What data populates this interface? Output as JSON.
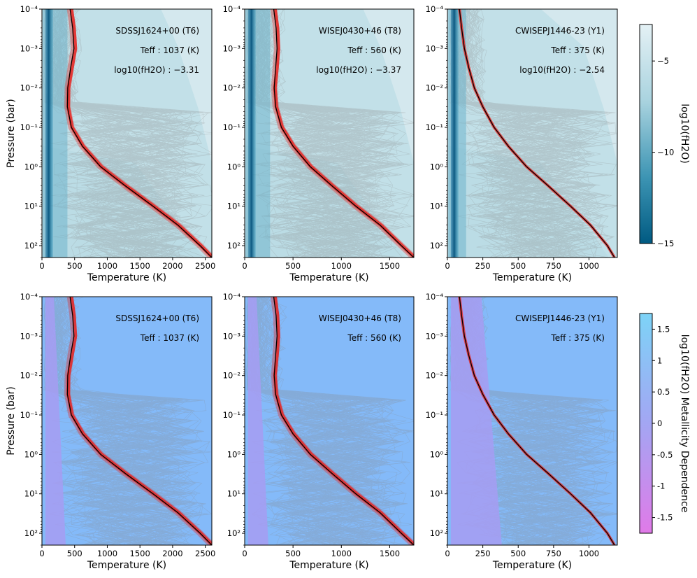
{
  "chart_data": [
    {
      "type": "line",
      "row": "top",
      "object": "SDSSJ1624+00 (T6)",
      "teff": "Teff : 1037 (K)",
      "abundance_label": "log10(fH2O) : −3.31",
      "xlabel": "Temperature (K)",
      "ylabel": "Pressure (bar)",
      "xlim": [
        0,
        2600
      ],
      "xticks": [
        "0",
        "500",
        "1000",
        "1500",
        "2000",
        "2500"
      ],
      "xtick_values": [
        0,
        500,
        1000,
        1500,
        2000,
        2500
      ],
      "ylim": [
        0.0001,
        200
      ],
      "yscale": "log",
      "yticks": [
        "10⁻⁴",
        "10⁻³",
        "10⁻²",
        "10⁻¹",
        "10⁰",
        "10¹",
        "10²"
      ],
      "ytick_values": [
        0.0001,
        0.001,
        0.01,
        0.1,
        1,
        10,
        100
      ],
      "profile_pressure": [
        0.0001,
        0.0003,
        0.001,
        0.003,
        0.01,
        0.03,
        0.1,
        0.3,
        1,
        3,
        10,
        30,
        100,
        200
      ],
      "profile_temperature": [
        430,
        470,
        490,
        440,
        395,
        390,
        450,
        620,
        900,
        1270,
        1700,
        2080,
        2420,
        2600
      ]
    },
    {
      "type": "line",
      "row": "top",
      "object": "WISEJ0430+46 (T8)",
      "teff": "Teff : 560 (K)",
      "abundance_label": "log10(fH2O) : −3.37",
      "xlabel": "Temperature (K)",
      "xlim": [
        0,
        1750
      ],
      "xticks": [
        "0",
        "500",
        "1000",
        "1500"
      ],
      "xtick_values": [
        0,
        500,
        1000,
        1500
      ],
      "ylim": [
        0.0001,
        200
      ],
      "yscale": "log",
      "yticks": [
        "10⁻⁴",
        "10⁻³",
        "10⁻²",
        "10⁻¹",
        "10⁰",
        "10¹",
        "10²"
      ],
      "ytick_values": [
        0.0001,
        0.001,
        0.01,
        0.1,
        1,
        10,
        100
      ],
      "profile_pressure": [
        0.0001,
        0.0003,
        0.001,
        0.003,
        0.01,
        0.03,
        0.1,
        0.3,
        1,
        3,
        10,
        30,
        100,
        200
      ],
      "profile_temperature": [
        300,
        325,
        335,
        320,
        305,
        320,
        380,
        500,
        680,
        900,
        1150,
        1400,
        1620,
        1750
      ]
    },
    {
      "type": "line",
      "row": "top",
      "object": "CWISEPJ1446-23 (Y1)",
      "teff": "Teff : 375 (K)",
      "abundance_label": "log10(fH2O) : −2.54",
      "xlabel": "Temperature (K)",
      "xlim": [
        0,
        1200
      ],
      "xticks": [
        "0",
        "250",
        "500",
        "750",
        "1000"
      ],
      "xtick_values": [
        0,
        250,
        500,
        750,
        1000
      ],
      "ylim": [
        0.0001,
        200
      ],
      "yscale": "log",
      "yticks": [
        "10⁻⁴",
        "10⁻³",
        "10⁻²",
        "10⁻¹",
        "10⁰",
        "10¹",
        "10²"
      ],
      "ytick_values": [
        0.0001,
        0.001,
        0.01,
        0.1,
        1,
        10,
        100
      ],
      "profile_pressure": [
        0.0001,
        0.0003,
        0.001,
        0.003,
        0.01,
        0.03,
        0.1,
        0.3,
        1,
        3,
        10,
        30,
        100,
        200
      ],
      "profile_temperature": [
        85,
        100,
        120,
        150,
        190,
        250,
        330,
        430,
        560,
        710,
        870,
        1010,
        1130,
        1180
      ]
    },
    {
      "type": "line",
      "row": "bottom",
      "object": "SDSSJ1624+00 (T6)",
      "teff": "Teff : 1037 (K)",
      "xlabel": "Temperature (K)",
      "ylabel": "Pressure (bar)",
      "xlim": [
        0,
        2600
      ],
      "xticks": [
        "0",
        "500",
        "1000",
        "1500",
        "2000",
        "2500"
      ],
      "xtick_values": [
        0,
        500,
        1000,
        1500,
        2000,
        2500
      ],
      "ylim": [
        0.0001,
        200
      ],
      "yscale": "log",
      "yticks": [
        "10⁻⁴",
        "10⁻³",
        "10⁻²",
        "10⁻¹",
        "10⁰",
        "10¹",
        "10²"
      ],
      "ytick_values": [
        0.0001,
        0.001,
        0.01,
        0.1,
        1,
        10,
        100
      ],
      "profile_pressure": [
        0.0001,
        0.0003,
        0.001,
        0.003,
        0.01,
        0.03,
        0.1,
        0.3,
        1,
        3,
        10,
        30,
        100,
        200
      ],
      "profile_temperature": [
        430,
        470,
        490,
        440,
        395,
        390,
        450,
        620,
        900,
        1270,
        1700,
        2080,
        2420,
        2600
      ]
    },
    {
      "type": "line",
      "row": "bottom",
      "object": "WISEJ0430+46 (T8)",
      "teff": "Teff : 560 (K)",
      "xlabel": "Temperature (K)",
      "xlim": [
        0,
        1750
      ],
      "xticks": [
        "0",
        "500",
        "1000",
        "1500"
      ],
      "xtick_values": [
        0,
        500,
        1000,
        1500
      ],
      "ylim": [
        0.0001,
        200
      ],
      "yscale": "log",
      "yticks": [
        "10⁻⁴",
        "10⁻³",
        "10⁻²",
        "10⁻¹",
        "10⁰",
        "10¹",
        "10²"
      ],
      "ytick_values": [
        0.0001,
        0.001,
        0.01,
        0.1,
        1,
        10,
        100
      ],
      "profile_pressure": [
        0.0001,
        0.0003,
        0.001,
        0.003,
        0.01,
        0.03,
        0.1,
        0.3,
        1,
        3,
        10,
        30,
        100,
        200
      ],
      "profile_temperature": [
        300,
        325,
        335,
        320,
        305,
        320,
        380,
        500,
        680,
        900,
        1150,
        1400,
        1620,
        1750
      ]
    },
    {
      "type": "line",
      "row": "bottom",
      "object": "CWISEPJ1446-23 (Y1)",
      "teff": "Teff : 375 (K)",
      "xlabel": "Temperature (K)",
      "xlim": [
        0,
        1200
      ],
      "xticks": [
        "0",
        "250",
        "500",
        "750",
        "1000"
      ],
      "xtick_values": [
        0,
        250,
        500,
        750,
        1000
      ],
      "ylim": [
        0.0001,
        200
      ],
      "yscale": "log",
      "yticks": [
        "10⁻⁴",
        "10⁻³",
        "10⁻²",
        "10⁻¹",
        "10⁰",
        "10¹",
        "10²"
      ],
      "ytick_values": [
        0.0001,
        0.001,
        0.01,
        0.1,
        1,
        10,
        100
      ],
      "profile_pressure": [
        0.0001,
        0.0003,
        0.001,
        0.003,
        0.01,
        0.03,
        0.1,
        0.3,
        1,
        3,
        10,
        30,
        100,
        200
      ],
      "profile_temperature": [
        85,
        100,
        120,
        150,
        190,
        250,
        330,
        430,
        560,
        710,
        870,
        1010,
        1130,
        1180
      ]
    }
  ],
  "colorbars": [
    {
      "label": "log10(fH2O)",
      "range": [
        -15,
        -3
      ],
      "ticks": [
        "−5",
        "−10",
        "−15"
      ],
      "tick_values": [
        -5,
        -10,
        -15
      ],
      "colors": [
        "#dfeef2",
        "#005f86"
      ]
    },
    {
      "label": "log10(fH2O)  Metallicity  Dependence",
      "range": [
        -1.75,
        1.75
      ],
      "ticks": [
        "1.5",
        "1",
        "0.5",
        "0",
        "-0.5",
        "-1",
        "-1.5"
      ],
      "tick_values": [
        1.5,
        1,
        0.5,
        0,
        -0.5,
        -1,
        -1.5
      ],
      "colors": [
        "#e07ae8",
        "#7ed0f5"
      ]
    }
  ],
  "colors": {
    "top_background": "#c2e0e8",
    "bottom_background": "#84baf9",
    "profile_line": "#000000",
    "profile_band": "#e8221e",
    "grid_profiles": "#888888",
    "cold_band_dark": "#0b5b86",
    "cold_band_purple": "#a69cf2"
  }
}
